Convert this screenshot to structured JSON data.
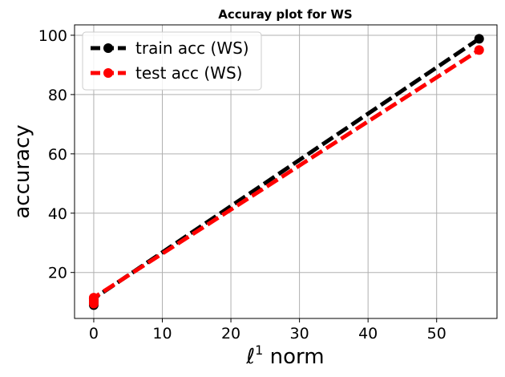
{
  "chart_data": {
    "type": "line",
    "title": "Accuray plot for WS",
    "xlabel": "ℓ",
    "xlabel_sup": "1",
    "xlabel_suffix": " norm",
    "ylabel": "accuracy",
    "xlim": [
      -2.8,
      58.8
    ],
    "ylim": [
      4.5,
      103.5
    ],
    "xticks": [
      0,
      10,
      20,
      30,
      40,
      50
    ],
    "yticks": [
      20,
      40,
      60,
      80,
      100
    ],
    "grid": true,
    "legend_position": "upper-left",
    "series": [
      {
        "name": "train acc (WS)",
        "color": "#000000",
        "x": [
          0,
          0,
          0,
          0,
          56.2
        ],
        "y": [
          9,
          9.8,
          10.5,
          11.2,
          98.8
        ]
      },
      {
        "name": "test acc (WS)",
        "color": "#ff0000",
        "x": [
          0,
          0,
          0,
          0,
          56.2
        ],
        "y": [
          9.5,
          10.2,
          11,
          11.5,
          95
        ]
      }
    ]
  }
}
